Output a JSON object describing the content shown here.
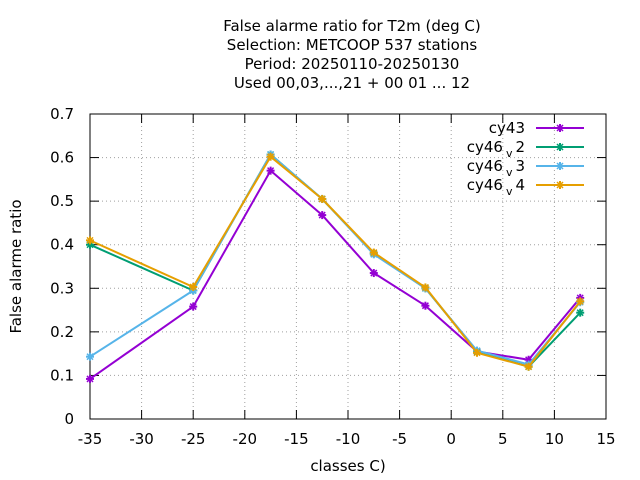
{
  "chart_data": {
    "type": "line",
    "title_lines": [
      "False alarme ratio  for T2m (deg C)",
      "Selection: METCOOP    537 stations",
      "Period: 20250110-20250130",
      "Used  00,03,...,21  + 00 01 ... 12"
    ],
    "xlabel": "classes C)",
    "ylabel": "False alarme ratio",
    "xlim": [
      -35,
      15
    ],
    "ylim": [
      0,
      0.7
    ],
    "xticks": [
      -35,
      -30,
      -25,
      -20,
      -15,
      -10,
      -5,
      0,
      5,
      10,
      15
    ],
    "yticks": [
      0,
      0.1,
      0.2,
      0.3,
      0.4,
      0.5,
      0.6,
      0.7
    ],
    "ytick_labels": [
      "0",
      "0.1",
      "0.2",
      "0.3",
      "0.4",
      "0.5",
      "0.6",
      "0.7"
    ],
    "grid": true,
    "legend_position": "top-right",
    "x": [
      -35,
      -25,
      -17.5,
      -12.5,
      -7.5,
      -2.5,
      2.5,
      7.5,
      12.5
    ],
    "series": [
      {
        "name": "cy43",
        "legend_main": "cy43",
        "legend_sub": "",
        "legend_tail": "",
        "color": "#9400d3",
        "values": [
          0.092,
          0.258,
          0.57,
          0.468,
          0.335,
          0.26,
          0.155,
          0.136,
          0.278
        ]
      },
      {
        "name": "cy46 v 2",
        "legend_main": "cy46",
        "legend_sub": "v",
        "legend_tail": "2",
        "color": "#009e73",
        "values": [
          0.4,
          0.295,
          0.607,
          0.505,
          0.38,
          0.3,
          0.155,
          0.12,
          0.244
        ]
      },
      {
        "name": "cy46 v 3",
        "legend_main": "cy46",
        "legend_sub": "v",
        "legend_tail": "3",
        "color": "#56b4e9",
        "values": [
          0.143,
          0.295,
          0.607,
          0.505,
          0.378,
          0.3,
          0.157,
          0.125,
          0.268
        ]
      },
      {
        "name": "cy46 v 4",
        "legend_main": "cy46",
        "legend_sub": "v",
        "legend_tail": "4",
        "color": "#e69f00",
        "values": [
          0.41,
          0.303,
          0.602,
          0.505,
          0.382,
          0.302,
          0.152,
          0.12,
          0.27
        ]
      }
    ]
  }
}
